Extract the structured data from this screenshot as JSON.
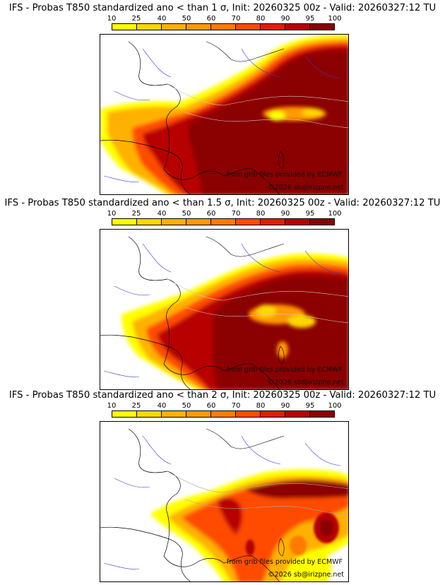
{
  "colorbar": {
    "ticks": [
      "10",
      "25",
      "40",
      "50",
      "60",
      "70",
      "80",
      "90",
      "95",
      "100"
    ],
    "colors": [
      "#ffff00",
      "#ffd700",
      "#ffb100",
      "#ff9a00",
      "#ff7b00",
      "#ff4b00",
      "#e01e00",
      "#b80000",
      "#8b0000"
    ]
  },
  "panels": [
    {
      "title": "IFS - Probas T850  standardized ano < than 1 σ, Init: 20260325 00z - Valid: 20260327:12 TU",
      "credit_source": "from grib files provided by ECMWF",
      "credit_copyright": "©2026 sb@irizpne.net"
    },
    {
      "title": "IFS - Probas T850  standardized ano < than 1.5 σ, Init: 20260325 00z - Valid: 20260327:12 TU",
      "credit_source": "from grib files provided by ECMWF",
      "credit_copyright": "©2026 sb@irizpne.net"
    },
    {
      "title": "IFS - Probas T850  standardized ano < than 2 σ, Init: 20260325 00z - Valid: 20260327:12 TU",
      "credit_source": "from grib files provided by ECMWF",
      "credit_copyright": "©2026 sb@irizpne.net"
    }
  ]
}
